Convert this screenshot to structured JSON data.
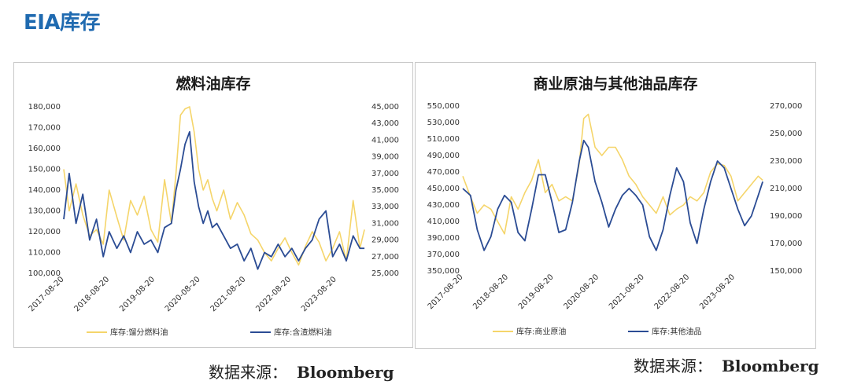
{
  "page": {
    "title": "EIA库存"
  },
  "source_left": {
    "label": "数据来源：",
    "name": "Bloomberg"
  },
  "source_right": {
    "label": "数据来源：",
    "name": "Bloomberg"
  },
  "colors": {
    "series_light": "#f5d56a",
    "series_dark": "#2b4c94",
    "title_blue": "#1f6ab0"
  },
  "chart_data": [
    {
      "type": "line",
      "title": "燃料油库存",
      "x_ticks": [
        "2017-08-20",
        "2018-08-20",
        "2019-08-20",
        "2020-08-20",
        "2021-08-20",
        "2022-08-20",
        "2023-08-20"
      ],
      "y_left": {
        "ticks": [
          "100,000",
          "110,000",
          "120,000",
          "130,000",
          "140,000",
          "150,000",
          "160,000",
          "170,000",
          "180,000"
        ],
        "lim": [
          100000,
          180000
        ]
      },
      "y_right": {
        "ticks": [
          "25,000",
          "27,000",
          "29,000",
          "31,000",
          "33,000",
          "35,000",
          "37,000",
          "39,000",
          "41,000",
          "43,000",
          "45,000"
        ],
        "lim": [
          25000,
          45000
        ]
      },
      "series": [
        {
          "name": "库存:馏分燃料油",
          "axis": "left",
          "color": "#f5d56a",
          "x": [
            2017.63,
            2017.75,
            2017.9,
            2018.05,
            2018.2,
            2018.35,
            2018.5,
            2018.63,
            2018.8,
            2018.95,
            2019.1,
            2019.25,
            2019.4,
            2019.55,
            2019.7,
            2019.85,
            2020.0,
            2020.1,
            2020.2,
            2020.3,
            2020.4,
            2020.5,
            2020.6,
            2020.7,
            2020.8,
            2020.9,
            2021.0,
            2021.15,
            2021.3,
            2021.45,
            2021.6,
            2021.75,
            2021.9,
            2022.05,
            2022.2,
            2022.35,
            2022.5,
            2022.65,
            2022.8,
            2022.95,
            2023.1,
            2023.25,
            2023.4,
            2023.55,
            2023.7,
            2023.85,
            2024.0,
            2024.15,
            2024.25
          ],
          "y": [
            150000,
            130000,
            143000,
            128000,
            118000,
            121000,
            114000,
            140000,
            127000,
            116000,
            135000,
            128000,
            137000,
            121000,
            115000,
            145000,
            124000,
            148000,
            176000,
            179000,
            180000,
            168000,
            150000,
            140000,
            145000,
            136000,
            130000,
            140000,
            126000,
            134000,
            128000,
            119000,
            116000,
            110000,
            106000,
            112000,
            117000,
            110000,
            104000,
            113000,
            120000,
            115000,
            106000,
            112000,
            120000,
            106000,
            135000,
            112000,
            121000
          ]
        },
        {
          "name": "库存:含渣燃料油",
          "axis": "right",
          "color": "#2b4c94",
          "x": [
            2017.63,
            2017.75,
            2017.9,
            2018.05,
            2018.2,
            2018.35,
            2018.5,
            2018.63,
            2018.8,
            2018.95,
            2019.1,
            2019.25,
            2019.4,
            2019.55,
            2019.7,
            2019.85,
            2020.0,
            2020.1,
            2020.2,
            2020.3,
            2020.4,
            2020.5,
            2020.6,
            2020.7,
            2020.8,
            2020.9,
            2021.0,
            2021.15,
            2021.3,
            2021.45,
            2021.6,
            2021.75,
            2021.9,
            2022.05,
            2022.2,
            2022.35,
            2022.5,
            2022.65,
            2022.8,
            2022.95,
            2023.1,
            2023.25,
            2023.4,
            2023.55,
            2023.7,
            2023.85,
            2024.0,
            2024.15,
            2024.25
          ],
          "y": [
            31500,
            37000,
            31000,
            34500,
            29000,
            31500,
            27000,
            30000,
            28000,
            29500,
            27500,
            30000,
            28500,
            29000,
            27500,
            30500,
            31000,
            35000,
            37500,
            40500,
            42000,
            36000,
            33000,
            31000,
            32500,
            30500,
            31000,
            29500,
            28000,
            28500,
            26500,
            28000,
            25500,
            27500,
            27000,
            28500,
            27000,
            28000,
            26500,
            28000,
            29000,
            31500,
            32500,
            27000,
            28500,
            26500,
            29500,
            28000,
            28000
          ]
        }
      ]
    },
    {
      "type": "line",
      "title": "商业原油与其他油品库存",
      "x_ticks": [
        "2017-08-20",
        "2018-08-20",
        "2019-08-20",
        "2020-08-20",
        "2021-08-20",
        "2022-08-20",
        "2023-08-20"
      ],
      "y_left": {
        "ticks": [
          "350,000",
          "370,000",
          "390,000",
          "410,000",
          "430,000",
          "450,000",
          "470,000",
          "490,000",
          "510,000",
          "530,000",
          "550,000"
        ],
        "lim": [
          350000,
          550000
        ]
      },
      "y_right": {
        "ticks": [
          "150,000",
          "170,000",
          "190,000",
          "210,000",
          "230,000",
          "250,000",
          "270,000"
        ],
        "lim": [
          150000,
          270000
        ]
      },
      "series": [
        {
          "name": "库存:商业原油",
          "axis": "left",
          "color": "#f5d56a",
          "x": [
            2017.63,
            2017.8,
            2017.95,
            2018.1,
            2018.25,
            2018.4,
            2018.55,
            2018.7,
            2018.85,
            2019.0,
            2019.15,
            2019.3,
            2019.45,
            2019.6,
            2019.75,
            2019.9,
            2020.05,
            2020.2,
            2020.3,
            2020.4,
            2020.55,
            2020.7,
            2020.85,
            2021.0,
            2021.15,
            2021.3,
            2021.45,
            2021.6,
            2021.75,
            2021.9,
            2022.05,
            2022.2,
            2022.35,
            2022.5,
            2022.65,
            2022.8,
            2022.95,
            2023.1,
            2023.25,
            2023.4,
            2023.55,
            2023.7,
            2023.85,
            2024.0,
            2024.15,
            2024.25
          ],
          "y": [
            465000,
            440000,
            420000,
            430000,
            425000,
            410000,
            395000,
            440000,
            425000,
            445000,
            460000,
            485000,
            445000,
            455000,
            435000,
            440000,
            435000,
            480000,
            535000,
            540000,
            500000,
            490000,
            500000,
            500000,
            485000,
            465000,
            455000,
            440000,
            430000,
            420000,
            440000,
            418000,
            425000,
            430000,
            440000,
            435000,
            445000,
            470000,
            480000,
            478000,
            465000,
            435000,
            445000,
            455000,
            465000,
            460000
          ]
        },
        {
          "name": "库存:其他油品",
          "axis": "right",
          "color": "#2b4c94",
          "x": [
            2017.63,
            2017.8,
            2017.95,
            2018.1,
            2018.25,
            2018.4,
            2018.55,
            2018.7,
            2018.85,
            2019.0,
            2019.15,
            2019.3,
            2019.45,
            2019.6,
            2019.75,
            2019.9,
            2020.05,
            2020.2,
            2020.3,
            2020.4,
            2020.55,
            2020.7,
            2020.85,
            2021.0,
            2021.15,
            2021.3,
            2021.45,
            2021.6,
            2021.75,
            2021.9,
            2022.05,
            2022.2,
            2022.35,
            2022.5,
            2022.65,
            2022.8,
            2022.95,
            2023.1,
            2023.25,
            2023.4,
            2023.55,
            2023.7,
            2023.85,
            2024.0,
            2024.15,
            2024.25
          ],
          "y": [
            210000,
            205000,
            180000,
            165000,
            175000,
            195000,
            205000,
            200000,
            178000,
            172000,
            195000,
            220000,
            220000,
            200000,
            178000,
            180000,
            200000,
            230000,
            245000,
            240000,
            215000,
            200000,
            182000,
            195000,
            205000,
            210000,
            205000,
            198000,
            175000,
            165000,
            180000,
            205000,
            225000,
            215000,
            185000,
            170000,
            195000,
            215000,
            230000,
            225000,
            210000,
            195000,
            183000,
            190000,
            205000,
            215000
          ]
        }
      ]
    }
  ]
}
